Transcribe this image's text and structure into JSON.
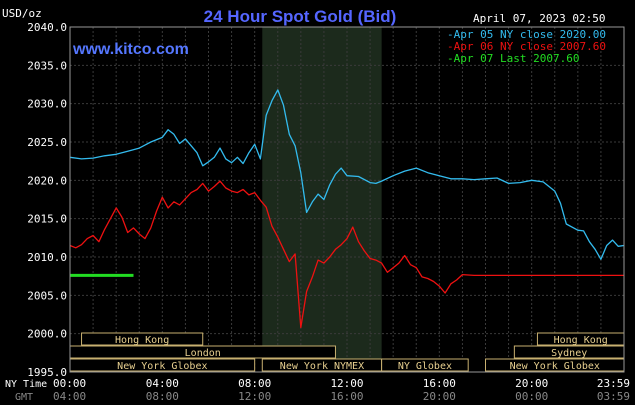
{
  "chart_data": {
    "type": "line",
    "title": "24 Hour Spot Gold (Bid)",
    "watermark": "www.kitco.com",
    "timestamp": "April 07, 2023 02:50",
    "ylabel": "USD/oz",
    "ylim": [
      1995,
      2040
    ],
    "yticks": [
      "2040.0",
      "2035.0",
      "2030.0",
      "2025.0",
      "2020.0",
      "2015.0",
      "2010.0",
      "2005.0",
      "2000.0",
      "1995.0"
    ],
    "x_axis_ny_label": "NY Time",
    "x_axis_gmt_label": "GMT",
    "xticks_ny": [
      "00:00",
      "04:00",
      "08:00",
      "12:00",
      "16:00",
      "20:00",
      "23:59"
    ],
    "xticks_gmt": [
      "04:00",
      "08:00",
      "12:00",
      "16:00",
      "20:00",
      "00:00",
      "03:59"
    ],
    "xlim_hours": [
      0,
      24
    ],
    "highlight_hours": [
      8.33,
      13.5
    ],
    "sessions": [
      {
        "label": "Hong Kong",
        "row": 0,
        "start": 0.5,
        "end": 5.75
      },
      {
        "label": "London",
        "row": 1,
        "start": 0,
        "end": 11.5
      },
      {
        "label": "New York Globex",
        "row": 2,
        "start": 0,
        "end": 8.0
      },
      {
        "label": "New York NYMEX",
        "row": 2,
        "start": 8.33,
        "end": 13.5
      },
      {
        "label": "NY Globex",
        "row": 2,
        "start": 13.5,
        "end": 17.25
      },
      {
        "label": "Hong Kong",
        "row": 0,
        "start": 20.25,
        "end": 24
      },
      {
        "label": "Sydney",
        "row": 1,
        "start": 19.25,
        "end": 24
      },
      {
        "label": "New York Globex",
        "row": 2,
        "start": 18.0,
        "end": 24
      }
    ],
    "legend": [
      {
        "label": "Apr 05 NY close 2020.00",
        "color": "#33bbee"
      },
      {
        "label": "Apr 06 NY close 2007.60",
        "color": "#ee1111"
      },
      {
        "label": "Apr 07 Last 2007.60",
        "color": "#22dd22"
      }
    ],
    "series": [
      {
        "name": "Apr 05 NY close 2020.00",
        "color": "#33bbee",
        "x": [
          0,
          0.5,
          1,
          1.5,
          2,
          2.5,
          3,
          3.25,
          3.5,
          4,
          4.25,
          4.5,
          4.75,
          5,
          5.25,
          5.5,
          5.75,
          6,
          6.25,
          6.5,
          6.75,
          7,
          7.25,
          7.5,
          7.75,
          8,
          8.25,
          8.5,
          8.75,
          9,
          9.25,
          9.5,
          9.75,
          10,
          10.25,
          10.5,
          10.75,
          11,
          11.25,
          11.5,
          11.75,
          12,
          12.5,
          13,
          13.25,
          13.5,
          14,
          14.5,
          15,
          15.5,
          16,
          16.5,
          17,
          17.5,
          18,
          18.5,
          19,
          19.5,
          20,
          20.5,
          21,
          21.25,
          21.5,
          22,
          22.25,
          22.5,
          22.75,
          23,
          23.25,
          23.5,
          23.75,
          24
        ],
        "values": [
          2023.0,
          2022.8,
          2022.9,
          2023.2,
          2023.4,
          2023.8,
          2024.2,
          2024.6,
          2025.0,
          2025.6,
          2026.6,
          2026.0,
          2024.8,
          2025.4,
          2024.5,
          2023.6,
          2021.9,
          2022.4,
          2023.0,
          2024.2,
          2022.8,
          2022.3,
          2023.0,
          2022.2,
          2023.6,
          2024.7,
          2022.8,
          2028.5,
          2030.4,
          2031.8,
          2029.8,
          2026.0,
          2024.5,
          2021.0,
          2015.8,
          2017.2,
          2018.2,
          2017.5,
          2019.4,
          2020.8,
          2021.6,
          2020.6,
          2020.5,
          2019.7,
          2019.6,
          2019.9,
          2020.6,
          2021.2,
          2021.6,
          2021.0,
          2020.6,
          2020.2,
          2020.2,
          2020.1,
          2020.2,
          2020.3,
          2019.6,
          2019.7,
          2020.0,
          2019.8,
          2018.6,
          2017.0,
          2014.3,
          2013.5,
          2013.4,
          2012.0,
          2011.0,
          2009.7,
          2011.5,
          2012.2,
          2011.4,
          2011.5
        ]
      },
      {
        "name": "Apr 06 NY close 2007.60",
        "color": "#ee1111",
        "x": [
          0,
          0.25,
          0.5,
          0.75,
          1,
          1.25,
          1.5,
          1.75,
          2,
          2.25,
          2.5,
          2.75,
          3,
          3.25,
          3.5,
          3.75,
          4,
          4.25,
          4.5,
          4.75,
          5,
          5.25,
          5.5,
          5.75,
          6,
          6.25,
          6.5,
          6.75,
          7,
          7.25,
          7.5,
          7.75,
          8,
          8.25,
          8.5,
          8.75,
          9,
          9.25,
          9.5,
          9.75,
          10,
          10.25,
          10.5,
          10.75,
          11,
          11.25,
          11.5,
          11.75,
          12,
          12.25,
          12.5,
          12.75,
          13,
          13.25,
          13.5,
          13.75,
          14,
          14.25,
          14.5,
          14.75,
          15,
          15.25,
          15.5,
          15.75,
          16,
          16.25,
          16.5,
          16.75,
          17,
          17.5,
          18,
          18.5,
          19,
          19.5,
          20,
          21,
          22,
          23,
          24
        ],
        "values": [
          2011.5,
          2011.2,
          2011.6,
          2012.4,
          2012.8,
          2012.0,
          2013.6,
          2015.0,
          2016.4,
          2015.2,
          2013.2,
          2013.8,
          2013.0,
          2012.4,
          2013.8,
          2016.0,
          2017.8,
          2016.4,
          2017.2,
          2016.8,
          2017.6,
          2018.4,
          2018.8,
          2019.6,
          2018.6,
          2019.2,
          2019.9,
          2019.0,
          2018.6,
          2018.4,
          2018.8,
          2018.1,
          2018.4,
          2017.4,
          2016.5,
          2014.0,
          2012.6,
          2011.0,
          2009.4,
          2010.4,
          2000.8,
          2005.5,
          2007.4,
          2009.6,
          2009.2,
          2010.0,
          2011.0,
          2011.6,
          2012.4,
          2013.9,
          2012.0,
          2010.8,
          2009.8,
          2009.6,
          2009.2,
          2008.0,
          2008.6,
          2009.2,
          2010.2,
          2009.0,
          2008.6,
          2007.4,
          2007.2,
          2006.8,
          2006.2,
          2005.3,
          2006.5,
          2007.0,
          2007.7,
          2007.6,
          2007.6,
          2007.6,
          2007.6,
          2007.6,
          2007.6,
          2007.6,
          2007.6,
          2007.6,
          2007.6
        ]
      },
      {
        "name": "Apr 07 Last 2007.60",
        "color": "#22dd22",
        "x": [
          0,
          2.75
        ],
        "values": [
          2007.6,
          2007.6
        ]
      }
    ]
  }
}
